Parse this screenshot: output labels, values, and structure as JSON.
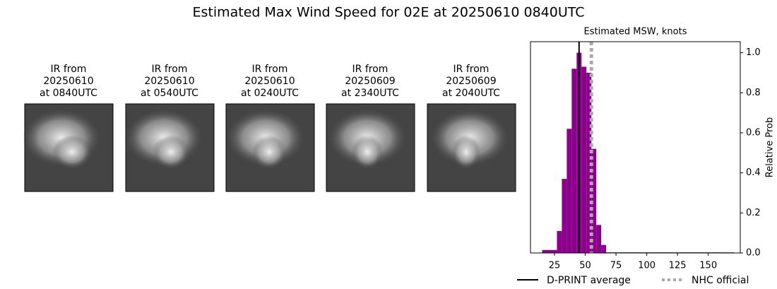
{
  "title": "Estimated Max Wind Speed for 02E at 20250610 0840UTC",
  "panels": [
    {
      "lines": [
        "IR from",
        "20250610",
        "at 0840UTC"
      ]
    },
    {
      "lines": [
        "IR from",
        "20250610",
        "at 0540UTC"
      ]
    },
    {
      "lines": [
        "IR from",
        "20250610",
        "at 0240UTC"
      ]
    },
    {
      "lines": [
        "IR from",
        "20250609",
        "at 2340UTC"
      ]
    },
    {
      "lines": [
        "IR from",
        "20250609",
        "at 2040UTC"
      ]
    }
  ],
  "chart_data": {
    "type": "histogram",
    "title": "Estimated MSW, knots",
    "y_label": "Relative Prob",
    "bins": [
      15,
      19,
      23,
      27,
      31,
      35,
      39,
      43,
      47,
      51,
      55,
      59,
      63,
      67,
      171
    ],
    "values": [
      0.015,
      0.015,
      0.015,
      0.11,
      0.37,
      0.62,
      0.92,
      1.0,
      0.93,
      0.9,
      0.52,
      0.14,
      0.04,
      0.003
    ],
    "color": "#8b008b",
    "xlim": [
      5.5,
      176
    ],
    "ylim": [
      0,
      1.055
    ],
    "xticks": [
      25,
      50,
      75,
      100,
      125,
      150
    ],
    "yticks": [
      {
        "value": 0,
        "label": "0.0"
      },
      0.2,
      0.4,
      0.6,
      0.8,
      {
        "value": 1,
        "label": "1.0"
      }
    ],
    "lines": [
      {
        "name": "D-PRINT average",
        "value": 45,
        "color": "#000000",
        "style": "solid"
      },
      {
        "name": "NHC official",
        "value": 55,
        "color": "#aaaaaa",
        "style": "dotted"
      }
    ]
  }
}
